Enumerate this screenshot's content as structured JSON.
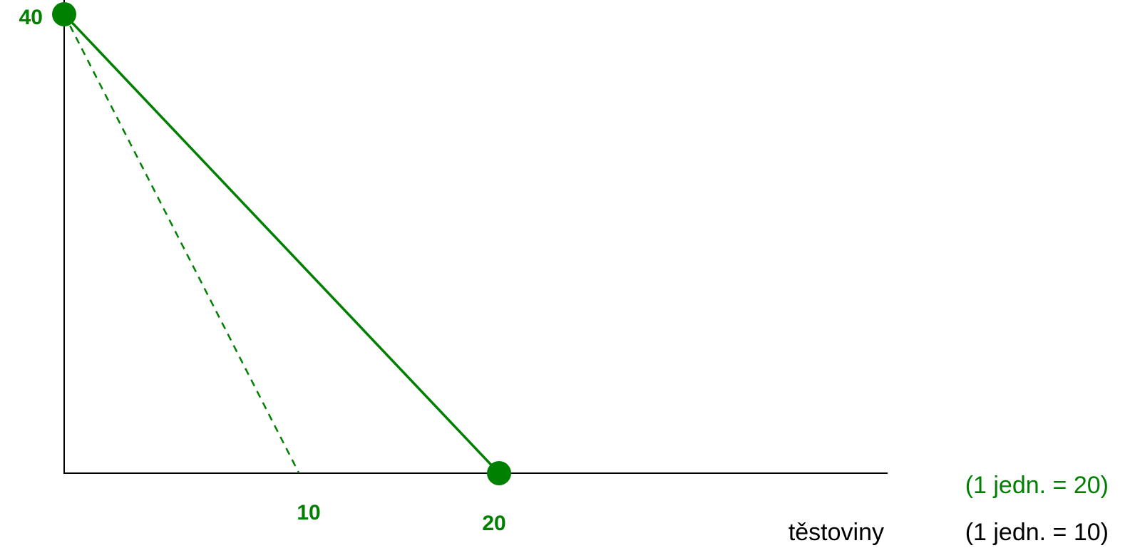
{
  "chart_data": {
    "type": "line",
    "title": "",
    "xlabel": "těstoviny",
    "ylabel": "",
    "xlim": [
      0,
      40
    ],
    "ylim": [
      0,
      40
    ],
    "series": [
      {
        "style": "solid",
        "color": "#008000",
        "points": [
          [
            0,
            40
          ],
          [
            20,
            0
          ]
        ],
        "markers": true
      },
      {
        "style": "dashed",
        "color": "#008000",
        "points": [
          [
            0,
            40
          ],
          [
            10.8,
            0
          ]
        ],
        "markers": false
      }
    ],
    "tick_labels": {
      "y": [
        {
          "value": 40,
          "label": "40"
        }
      ],
      "x": [
        {
          "value": 11.2,
          "label": "10"
        },
        {
          "value": 19.8,
          "label": "20"
        }
      ]
    },
    "unit_notes": [
      {
        "text": "(1 jedn. = 20)",
        "color": "#008000"
      },
      {
        "text": "(1 jedn. = 10)",
        "color": "#000000"
      }
    ],
    "grid": false,
    "legend": "none"
  },
  "colors": {
    "series": "#008000",
    "axis": "#000000",
    "text": "#000000"
  }
}
